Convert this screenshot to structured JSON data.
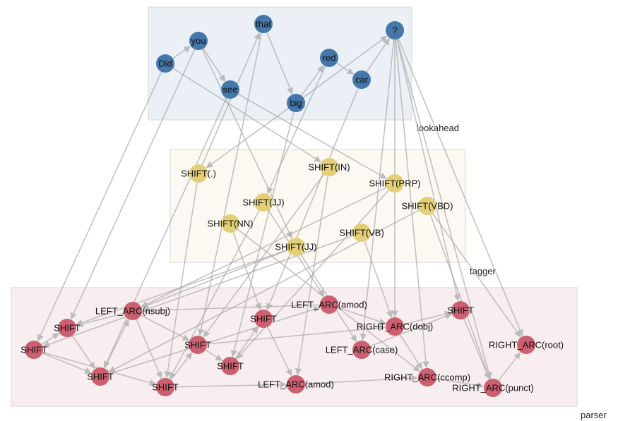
{
  "groups": [
    {
      "id": "lookahead",
      "label": "lookahead",
      "fill": "#eaf0f6"
    },
    {
      "id": "tagger",
      "label": "tagger",
      "fill": "#fcf9f2"
    },
    {
      "id": "parser",
      "label": "parser",
      "fill": "#f8eef0"
    }
  ],
  "colors": {
    "lookahead": "#4577aa",
    "tagger": "#e2cf77",
    "parser": "#cc6070",
    "edge": "#aaaaaa"
  },
  "nodes": [
    {
      "id": "w_did",
      "label": "Did",
      "group": "lookahead"
    },
    {
      "id": "w_you",
      "label": "you",
      "group": "lookahead"
    },
    {
      "id": "w_that",
      "label": "that",
      "group": "lookahead"
    },
    {
      "id": "w_see",
      "label": "see",
      "group": "lookahead"
    },
    {
      "id": "w_big",
      "label": "big",
      "group": "lookahead"
    },
    {
      "id": "w_red",
      "label": "red",
      "group": "lookahead"
    },
    {
      "id": "w_car",
      "label": "car",
      "group": "lookahead"
    },
    {
      "id": "w_q",
      "label": "?",
      "group": "lookahead"
    },
    {
      "id": "t_dot",
      "label": "SHIFT(.)",
      "group": "tagger"
    },
    {
      "id": "t_in",
      "label": "SHIFT(IN)",
      "group": "tagger"
    },
    {
      "id": "t_prp",
      "label": "SHIFT(PRP)",
      "group": "tagger"
    },
    {
      "id": "t_jj1",
      "label": "SHIFT(JJ)",
      "group": "tagger"
    },
    {
      "id": "t_vbd",
      "label": "SHIFT(VBD)",
      "group": "tagger"
    },
    {
      "id": "t_nn",
      "label": "SHIFT(NN)",
      "group": "tagger"
    },
    {
      "id": "t_vb",
      "label": "SHIFT(VB)",
      "group": "tagger"
    },
    {
      "id": "t_jj2",
      "label": "SHIFT(JJ)",
      "group": "tagger"
    },
    {
      "id": "p_nsubj",
      "label": "LEFT_ARC(nsubj)",
      "group": "parser"
    },
    {
      "id": "p_s1",
      "label": "SHIFT",
      "group": "parser"
    },
    {
      "id": "p_s0",
      "label": "SHIFT",
      "group": "parser"
    },
    {
      "id": "p_s2",
      "label": "SHIFT",
      "group": "parser"
    },
    {
      "id": "p_s3",
      "label": "SHIFT",
      "group": "parser"
    },
    {
      "id": "p_s4",
      "label": "SHIFT",
      "group": "parser"
    },
    {
      "id": "p_s5",
      "label": "SHIFT",
      "group": "parser"
    },
    {
      "id": "p_s6",
      "label": "SHIFT",
      "group": "parser"
    },
    {
      "id": "p_amod1",
      "label": "LEFT_ARC(amod)",
      "group": "parser"
    },
    {
      "id": "p_dobj",
      "label": "RIGHT_ARC(dobj)",
      "group": "parser"
    },
    {
      "id": "p_case",
      "label": "LEFT_ARC(case)",
      "group": "parser"
    },
    {
      "id": "p_s7",
      "label": "SHIFT",
      "group": "parser"
    },
    {
      "id": "p_ccomp",
      "label": "RIGHT_ARC(ccomp)",
      "group": "parser"
    },
    {
      "id": "p_amod2",
      "label": "LEFT_ARC(amod)",
      "group": "parser"
    },
    {
      "id": "p_root",
      "label": "RIGHT_ARC(root)",
      "group": "parser"
    },
    {
      "id": "p_punct",
      "label": "RIGHT_ARC(punct)",
      "group": "parser"
    }
  ],
  "edges": [
    [
      "w_did",
      "w_you"
    ],
    [
      "w_you",
      "w_see"
    ],
    [
      "w_that",
      "w_big"
    ],
    [
      "w_red",
      "w_car"
    ],
    [
      "w_big",
      "w_red"
    ],
    [
      "w_big",
      "w_q"
    ],
    [
      "w_car",
      "w_q"
    ],
    [
      "w_did",
      "p_s0"
    ],
    [
      "w_you",
      "p_s1"
    ],
    [
      "w_did",
      "t_in"
    ],
    [
      "w_you",
      "t_jj2"
    ],
    [
      "w_see",
      "t_prp"
    ],
    [
      "w_see",
      "p_s2"
    ],
    [
      "w_that",
      "p_s4"
    ],
    [
      "w_big",
      "t_dot"
    ],
    [
      "w_big",
      "p_s6"
    ],
    [
      "w_red",
      "t_jj1"
    ],
    [
      "w_car",
      "p_s5"
    ],
    [
      "w_q",
      "p_s7"
    ],
    [
      "w_q",
      "p_ccomp"
    ],
    [
      "w_q",
      "p_punct"
    ],
    [
      "w_q",
      "p_dobj"
    ],
    [
      "w_q",
      "p_case"
    ],
    [
      "w_q",
      "p_root"
    ],
    [
      "t_dot",
      "p_s3"
    ],
    [
      "t_dot",
      "w_that"
    ],
    [
      "t_in",
      "p_s4"
    ],
    [
      "t_in",
      "p_amod2"
    ],
    [
      "t_prp",
      "p_nsubj"
    ],
    [
      "t_prp",
      "p_s6"
    ],
    [
      "t_jj1",
      "p_amod1"
    ],
    [
      "t_jj1",
      "p_s3"
    ],
    [
      "t_vbd",
      "p_s2"
    ],
    [
      "t_vbd",
      "p_punct"
    ],
    [
      "t_vbd",
      "p_root"
    ],
    [
      "t_nn",
      "p_s5"
    ],
    [
      "t_nn",
      "p_ccomp"
    ],
    [
      "t_vb",
      "p_s0"
    ],
    [
      "t_vb",
      "p_dobj"
    ],
    [
      "t_jj2",
      "p_nsubj"
    ],
    [
      "t_jj2",
      "p_case"
    ],
    [
      "t_jj2",
      "p_s1"
    ],
    [
      "p_nsubj",
      "p_s1"
    ],
    [
      "p_s0",
      "p_s1"
    ],
    [
      "p_s0",
      "p_s2"
    ],
    [
      "p_s0",
      "p_s3"
    ],
    [
      "p_s1",
      "p_s2"
    ],
    [
      "p_s2",
      "p_nsubj"
    ],
    [
      "p_nsubj",
      "p_s3"
    ],
    [
      "p_nsubj",
      "p_s4"
    ],
    [
      "p_s3",
      "p_s4"
    ],
    [
      "p_s4",
      "p_s6"
    ],
    [
      "p_s6",
      "p_s5"
    ],
    [
      "p_s3",
      "p_amod2"
    ],
    [
      "p_s5",
      "p_amod2"
    ],
    [
      "p_amod1",
      "p_dobj"
    ],
    [
      "p_amod1",
      "p_nsubj"
    ],
    [
      "p_case",
      "p_s7"
    ],
    [
      "p_dobj",
      "p_s7"
    ],
    [
      "p_dobj",
      "p_ccomp"
    ],
    [
      "p_s7",
      "p_punct"
    ],
    [
      "p_ccomp",
      "p_punct"
    ],
    [
      "p_punct",
      "p_root"
    ],
    [
      "p_amod2",
      "p_ccomp"
    ],
    [
      "p_s2",
      "p_amod1"
    ],
    [
      "p_s4",
      "p_dobj"
    ]
  ]
}
